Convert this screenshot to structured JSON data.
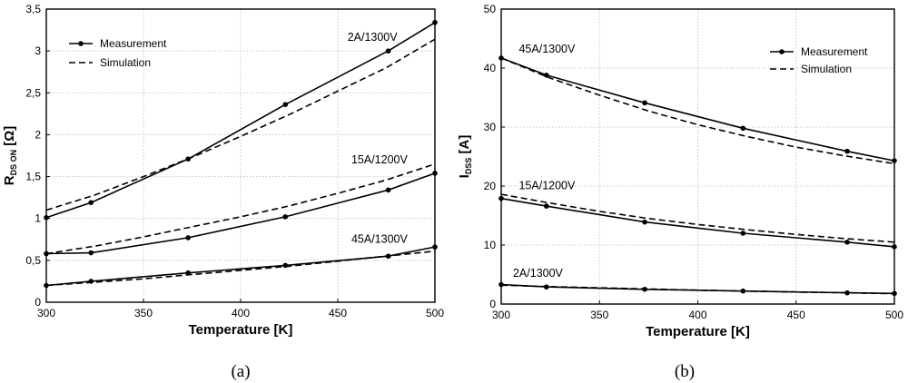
{
  "chart_data": [
    {
      "type": "line",
      "panel_label": "(a)",
      "xlabel": "Temperature [K]",
      "ylabel_main": "R",
      "ylabel_sub": "DS ON",
      "ylabel_unit": " [Ω]",
      "xlim": [
        300,
        500
      ],
      "ylim": [
        0,
        3.5
      ],
      "xticks": [
        300,
        350,
        400,
        450,
        500
      ],
      "xtick_labels": [
        "300",
        "350",
        "400",
        "450",
        "500"
      ],
      "yticks": [
        0,
        0.5,
        1,
        1.5,
        2,
        2.5,
        3,
        3.5
      ],
      "ytick_labels": [
        "0",
        "0,5",
        "1",
        "1,5",
        "2",
        "2,5",
        "3",
        "3,5"
      ],
      "legend": {
        "position": "top-left",
        "measurement": "Measurement",
        "simulation": "Simulation"
      },
      "series": [
        {
          "name": "Measurement 2A/1300V",
          "style": "measurement",
          "x": [
            300,
            323,
            373,
            423,
            476,
            500
          ],
          "y": [
            1.01,
            1.19,
            1.71,
            2.36,
            3.0,
            3.34
          ]
        },
        {
          "name": "Simulation 2A/1300V",
          "style": "simulation",
          "x": [
            300,
            325,
            350,
            375,
            400,
            425,
            450,
            475,
            500
          ],
          "y": [
            1.1,
            1.28,
            1.5,
            1.73,
            1.98,
            2.24,
            2.52,
            2.8,
            3.14
          ]
        },
        {
          "name": "Measurement 15A/1200V",
          "style": "measurement",
          "x": [
            300,
            323,
            373,
            423,
            476,
            500
          ],
          "y": [
            0.58,
            0.59,
            0.77,
            1.02,
            1.34,
            1.54
          ]
        },
        {
          "name": "Simulation 15A/1200V",
          "style": "simulation",
          "x": [
            300,
            325,
            350,
            375,
            400,
            425,
            450,
            475,
            500
          ],
          "y": [
            0.58,
            0.67,
            0.78,
            0.9,
            1.02,
            1.15,
            1.3,
            1.46,
            1.65
          ]
        },
        {
          "name": "Measurement 45A/1300V",
          "style": "measurement",
          "x": [
            300,
            323,
            373,
            423,
            476,
            500
          ],
          "y": [
            0.2,
            0.25,
            0.35,
            0.44,
            0.55,
            0.66
          ]
        },
        {
          "name": "Simulation 45A/1300V",
          "style": "simulation",
          "x": [
            300,
            325,
            350,
            375,
            400,
            425,
            450,
            475,
            500
          ],
          "y": [
            0.2,
            0.24,
            0.28,
            0.33,
            0.38,
            0.43,
            0.49,
            0.55,
            0.61
          ]
        }
      ],
      "annotations": [
        {
          "text": "2A/1300V",
          "x": 455,
          "y": 3.12
        },
        {
          "text": "15A/1200V",
          "x": 457,
          "y": 1.66
        },
        {
          "text": "45A/1300V",
          "x": 457,
          "y": 0.71
        }
      ]
    },
    {
      "type": "line",
      "panel_label": "(b)",
      "xlabel": "Temperature [K]",
      "ylabel_main": "I",
      "ylabel_sub": "DSS",
      "ylabel_unit": " [A]",
      "xlim": [
        300,
        500
      ],
      "ylim": [
        0,
        50
      ],
      "xticks": [
        300,
        350,
        400,
        450,
        500
      ],
      "xtick_labels": [
        "300",
        "350",
        "400",
        "450",
        "500"
      ],
      "yticks": [
        0,
        10,
        20,
        30,
        40,
        50
      ],
      "ytick_labels": [
        "0",
        "10",
        "20",
        "30",
        "40",
        "50"
      ],
      "legend": {
        "position": "top-right",
        "measurement": "Measurement",
        "simulation": "Simulation"
      },
      "series": [
        {
          "name": "Measurement 45A/1300V",
          "style": "measurement",
          "x": [
            300,
            323,
            373,
            423,
            476,
            500
          ],
          "y": [
            41.7,
            38.8,
            34.1,
            29.8,
            25.9,
            24.3
          ]
        },
        {
          "name": "Simulation 45A/1300V",
          "style": "simulation",
          "x": [
            300,
            325,
            350,
            375,
            400,
            425,
            450,
            475,
            500
          ],
          "y": [
            41.7,
            38.3,
            35.4,
            32.7,
            30.4,
            28.4,
            26.6,
            25.1,
            23.8
          ]
        },
        {
          "name": "Measurement 15A/1200V",
          "style": "measurement",
          "x": [
            300,
            323,
            373,
            423,
            476,
            500
          ],
          "y": [
            17.9,
            16.6,
            13.9,
            12.0,
            10.5,
            9.7
          ]
        },
        {
          "name": "Simulation 15A/1200V",
          "style": "simulation",
          "x": [
            300,
            325,
            350,
            375,
            400,
            425,
            450,
            475,
            500
          ],
          "y": [
            18.6,
            17.1,
            15.7,
            14.5,
            13.5,
            12.6,
            11.8,
            11.1,
            10.5
          ]
        },
        {
          "name": "Measurement 2A/1300V",
          "style": "measurement",
          "x": [
            300,
            323,
            373,
            423,
            476,
            500
          ],
          "y": [
            3.3,
            2.9,
            2.5,
            2.2,
            1.9,
            1.8
          ]
        },
        {
          "name": "Simulation 2A/1300V",
          "style": "simulation",
          "x": [
            300,
            325,
            350,
            375,
            400,
            425,
            450,
            475,
            500
          ],
          "y": [
            3.2,
            2.95,
            2.75,
            2.55,
            2.35,
            2.2,
            2.05,
            1.9,
            1.75
          ]
        }
      ],
      "annotations": [
        {
          "text": "45A/1300V",
          "x": 309,
          "y": 42.6
        },
        {
          "text": "15A/1200V",
          "x": 309,
          "y": 19.5
        },
        {
          "text": "2A/1300V",
          "x": 306,
          "y": 4.6
        }
      ]
    }
  ]
}
